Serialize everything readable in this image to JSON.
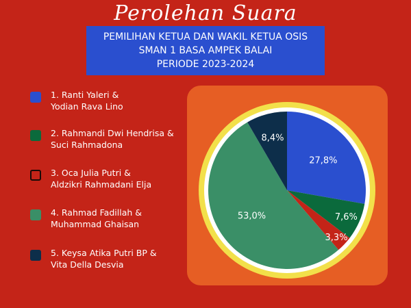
{
  "header": {
    "title": "Perolehan Suara",
    "subtitle_lines": [
      "PEMILIHAN KETUA DAN WAKIL KETUA OSIS",
      "SMAN 1 BASA AMPEK BALAI",
      "PERIODE 2023-2024"
    ]
  },
  "legend": [
    {
      "line1": "1. Ranti Yaleri &",
      "line2": "Yodian Rava Lino"
    },
    {
      "line1": "2. Rahmandi Dwi Hendrisa  &",
      "line2": "Suci Rahmadona"
    },
    {
      "line1": "3.  Oca Julia Putri &",
      "line2": "Aldzikri Rahmadani Elja"
    },
    {
      "line1": "4. Rahmad Fadillah &",
      "line2": "Muhammad Ghaisan"
    },
    {
      "line1": "5. Keysa Atika Putri BP &",
      "line2": "Vita Della Desvia"
    }
  ],
  "colors": {
    "background": "#c42418",
    "subtitle_box": "#2a4fcf",
    "panel": "#e65e24",
    "ring": "#f2e04a",
    "series": [
      "#2a4fcf",
      "#0b6a3c",
      "#c42418",
      "#3a8f67",
      "#0d2e4a"
    ]
  },
  "chart_data": {
    "type": "pie",
    "values": [
      27.8,
      7.6,
      3.3,
      53.0,
      8.4
    ],
    "labels": [
      "27,8%",
      "7,6%",
      "3,3%",
      "53,0%",
      "8,4%"
    ],
    "categories": [
      "1. Ranti Yaleri & Yodian Rava Lino",
      "2. Rahmandi Dwi Hendrisa & Suci Rahmadona",
      "3. Oca Julia Putri & Aldzikri Rahmadani Elja",
      "4. Rahmad Fadillah & Muhammad Ghaisan",
      "5. Keysa Atika Putri BP & Vita Della Desvia"
    ],
    "legend_position": "left"
  }
}
